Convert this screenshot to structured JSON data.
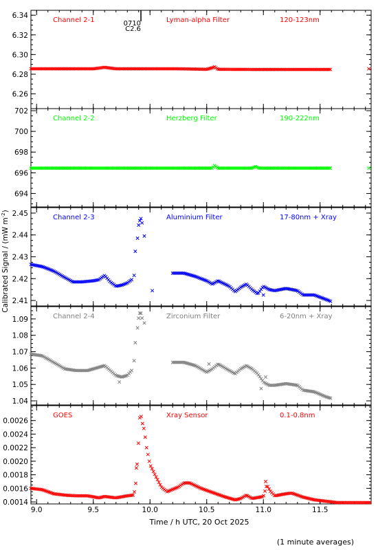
{
  "figure": {
    "xlabel": "Time / h UTC, 20 Oct 2025",
    "ylabel": "Calibrated Signal / (mW m^-2)",
    "footnote": "(1 minute averages)",
    "marker_label": [
      "0710",
      "C2.6"
    ],
    "marker_time": 9.92
  },
  "chart_data": [
    {
      "type": "scatter",
      "channel": "Channel 2-1",
      "filter": "Lyman-alpha Filter",
      "band": "120-123nm",
      "color": "#ff0000",
      "xlim": [
        8.95,
        11.95
      ],
      "ylim": [
        6.245,
        6.345
      ],
      "xticks": [
        9.0,
        9.5,
        10.0,
        10.5,
        11.0,
        11.5
      ],
      "yticks": [
        "6.26",
        "6.28",
        "6.30",
        "6.32",
        "6.34"
      ],
      "anchors": [
        [
          8.95,
          6.2855
        ],
        [
          9.5,
          6.2855
        ],
        [
          9.6,
          6.287
        ],
        [
          9.7,
          6.2855
        ],
        [
          9.98,
          6.2855
        ],
        [
          10.25,
          6.2855
        ],
        [
          10.5,
          6.285
        ],
        [
          10.55,
          6.2865
        ],
        [
          10.57,
          6.2875
        ],
        [
          10.6,
          6.285
        ],
        [
          11.0,
          6.2848
        ],
        [
          11.6,
          6.2848
        ]
      ],
      "extra": [
        [
          11.93,
          6.2855
        ]
      ]
    },
    {
      "type": "scatter",
      "channel": "Channel 2-2",
      "filter": "Herzberg Filter",
      "band": "190-222nm",
      "color": "#00ff00",
      "xlim": [
        8.95,
        11.95
      ],
      "ylim": [
        692.7,
        702.2
      ],
      "xticks": [
        9.0,
        9.5,
        10.0,
        10.5,
        11.0,
        11.5
      ],
      "yticks": [
        "694",
        "696",
        "698",
        "700",
        "702"
      ],
      "anchors": [
        [
          8.95,
          696.45
        ],
        [
          9.98,
          696.45
        ],
        [
          10.25,
          696.45
        ],
        [
          10.55,
          696.45
        ],
        [
          10.57,
          696.7
        ],
        [
          10.6,
          696.45
        ],
        [
          10.9,
          696.45
        ],
        [
          10.93,
          696.6
        ],
        [
          10.96,
          696.45
        ],
        [
          11.6,
          696.45
        ]
      ],
      "extra": [
        [
          11.93,
          696.45
        ]
      ]
    },
    {
      "type": "scatter",
      "channel": "Channel 2-3",
      "filter": "Aluminium Filter",
      "band": "17-80nm + Xray",
      "color": "#0000ff",
      "xlim": [
        8.95,
        11.95
      ],
      "ylim": [
        2.4075,
        2.4525
      ],
      "xticks": [
        9.0,
        9.5,
        10.0,
        10.5,
        11.0,
        11.5
      ],
      "yticks": [
        "2.41",
        "2.42",
        "2.43",
        "2.44",
        "2.45"
      ],
      "anchors": [
        [
          8.95,
          2.4265
        ],
        [
          9.05,
          2.4255
        ],
        [
          9.15,
          2.4235
        ],
        [
          9.25,
          2.4205
        ],
        [
          9.32,
          2.4185
        ],
        [
          9.4,
          2.4185
        ],
        [
          9.5,
          2.419
        ],
        [
          9.55,
          2.4195
        ],
        [
          9.6,
          2.4215
        ],
        [
          9.65,
          2.4185
        ],
        [
          9.7,
          2.4165
        ],
        [
          9.75,
          2.417
        ],
        [
          9.8,
          2.418
        ],
        [
          9.85,
          2.42
        ]
      ],
      "anchors2": [
        [
          10.2,
          2.4225
        ],
        [
          10.3,
          2.4225
        ],
        [
          10.4,
          2.421
        ],
        [
          10.5,
          2.419
        ],
        [
          10.55,
          2.4175
        ],
        [
          10.6,
          2.419
        ],
        [
          10.7,
          2.4165
        ],
        [
          10.75,
          2.414
        ],
        [
          10.8,
          2.416
        ],
        [
          10.85,
          2.4175
        ],
        [
          10.9,
          2.415
        ],
        [
          10.95,
          2.413
        ],
        [
          11.0,
          2.4165
        ],
        [
          11.05,
          2.415
        ],
        [
          11.1,
          2.4145
        ],
        [
          11.2,
          2.4155
        ],
        [
          11.3,
          2.4145
        ],
        [
          11.35,
          2.4125
        ],
        [
          11.45,
          2.4125
        ],
        [
          11.55,
          2.4105
        ],
        [
          11.6,
          2.4095
        ]
      ],
      "flare": [
        [
          9.86,
          2.4215
        ],
        [
          9.87,
          2.4325
        ],
        [
          9.89,
          2.4385
        ],
        [
          9.9,
          2.4445
        ],
        [
          9.91,
          2.4465
        ],
        [
          9.92,
          2.4475
        ],
        [
          9.93,
          2.4455
        ],
        [
          9.95,
          2.4395
        ]
      ],
      "extra": [
        [
          10.02,
          2.4145
        ],
        [
          11.0,
          2.4125
        ]
      ]
    },
    {
      "type": "scatter",
      "channel": "Channel 2-4",
      "filter": "Zirconium Filter",
      "band": "6-20nm + Xray",
      "color": "#808080",
      "xlim": [
        8.95,
        11.95
      ],
      "ylim": [
        1.0375,
        1.0975
      ],
      "xticks": [
        9.0,
        9.5,
        10.0,
        10.5,
        11.0,
        11.5
      ],
      "yticks": [
        "1.04",
        "1.05",
        "1.06",
        "1.07",
        "1.08",
        "1.09"
      ],
      "anchors": [
        [
          8.95,
          1.0685
        ],
        [
          9.05,
          1.0675
        ],
        [
          9.15,
          1.0635
        ],
        [
          9.25,
          1.0595
        ],
        [
          9.35,
          1.0585
        ],
        [
          9.45,
          1.0585
        ],
        [
          9.55,
          1.0605
        ],
        [
          9.6,
          1.0615
        ],
        [
          9.65,
          1.0585
        ],
        [
          9.7,
          1.0555
        ],
        [
          9.75,
          1.0545
        ],
        [
          9.8,
          1.0555
        ],
        [
          9.85,
          1.0595
        ]
      ],
      "anchors2": [
        [
          10.2,
          1.0635
        ],
        [
          10.3,
          1.0635
        ],
        [
          10.4,
          1.0615
        ],
        [
          10.5,
          1.0575
        ],
        [
          10.55,
          1.0595
        ],
        [
          10.6,
          1.0625
        ],
        [
          10.7,
          1.0585
        ],
        [
          10.75,
          1.0565
        ],
        [
          10.8,
          1.0595
        ],
        [
          10.85,
          1.0615
        ],
        [
          10.9,
          1.0595
        ],
        [
          10.95,
          1.0565
        ],
        [
          11.0,
          1.0515
        ],
        [
          11.05,
          1.0495
        ],
        [
          11.1,
          1.0495
        ],
        [
          11.2,
          1.0505
        ],
        [
          11.3,
          1.0495
        ],
        [
          11.35,
          1.0465
        ],
        [
          11.45,
          1.0455
        ],
        [
          11.55,
          1.0425
        ],
        [
          11.6,
          1.0415
        ]
      ],
      "flare": [
        [
          9.86,
          1.0645
        ],
        [
          9.87,
          1.0755
        ],
        [
          9.89,
          1.0845
        ],
        [
          9.9,
          1.0905
        ],
        [
          9.91,
          1.0935
        ],
        [
          9.92,
          1.0935
        ],
        [
          9.93,
          1.0905
        ],
        [
          9.95,
          1.0875
        ]
      ],
      "extra": [
        [
          10.52,
          1.0625
        ],
        [
          10.98,
          1.0475
        ],
        [
          11.02,
          1.0545
        ],
        [
          9.73,
          1.0515
        ]
      ]
    },
    {
      "type": "scatter",
      "channel": "GOES",
      "filter": "Xray Sensor",
      "band": "0.1-0.8nm",
      "color": "#ff0000",
      "xlim": [
        8.95,
        11.95
      ],
      "ylim": [
        0.00137,
        0.00282
      ],
      "xticks": [
        9.0,
        9.5,
        10.0,
        10.5,
        11.0,
        11.5
      ],
      "yticks": [
        "0.0014",
        "0.0016",
        "0.0018",
        "0.0020",
        "0.0022",
        "0.0024",
        "0.0026"
      ],
      "anchors": [
        [
          8.95,
          0.0016
        ],
        [
          9.05,
          0.00158
        ],
        [
          9.15,
          0.00152
        ],
        [
          9.25,
          0.0015
        ],
        [
          9.35,
          0.00149
        ],
        [
          9.45,
          0.00149
        ],
        [
          9.55,
          0.00146
        ],
        [
          9.6,
          0.00148
        ],
        [
          9.7,
          0.00146
        ],
        [
          9.8,
          0.00149
        ],
        [
          9.85,
          0.0015
        ],
        [
          9.87,
          0.00158
        ],
        [
          9.89,
          0.00205
        ],
        [
          9.9,
          0.00232
        ],
        [
          9.91,
          0.00264
        ],
        [
          9.92,
          0.00268
        ],
        [
          9.93,
          0.00258
        ],
        [
          9.95,
          0.00246
        ],
        [
          9.97,
          0.0022
        ],
        [
          10.0,
          0.00195
        ],
        [
          10.05,
          0.00178
        ],
        [
          10.1,
          0.00162
        ],
        [
          10.15,
          0.00155
        ],
        [
          10.25,
          0.00162
        ],
        [
          10.3,
          0.00168
        ],
        [
          10.35,
          0.00168
        ],
        [
          10.45,
          0.0016
        ],
        [
          10.55,
          0.00154
        ],
        [
          10.65,
          0.00148
        ],
        [
          10.75,
          0.00143
        ],
        [
          10.8,
          0.00145
        ],
        [
          10.85,
          0.0015
        ],
        [
          10.9,
          0.00145
        ],
        [
          11.0,
          0.00148
        ],
        [
          11.03,
          0.00165
        ],
        [
          11.06,
          0.00156
        ],
        [
          11.1,
          0.00149
        ],
        [
          11.2,
          0.00152
        ],
        [
          11.25,
          0.00153
        ],
        [
          11.35,
          0.00147
        ],
        [
          11.45,
          0.00143
        ],
        [
          11.55,
          0.00141
        ],
        [
          11.65,
          0.00139
        ],
        [
          11.75,
          0.00139
        ],
        [
          11.95,
          0.00139
        ]
      ],
      "extra": [
        [
          9.88,
          0.0019
        ],
        [
          11.02,
          0.0017
        ]
      ]
    }
  ]
}
